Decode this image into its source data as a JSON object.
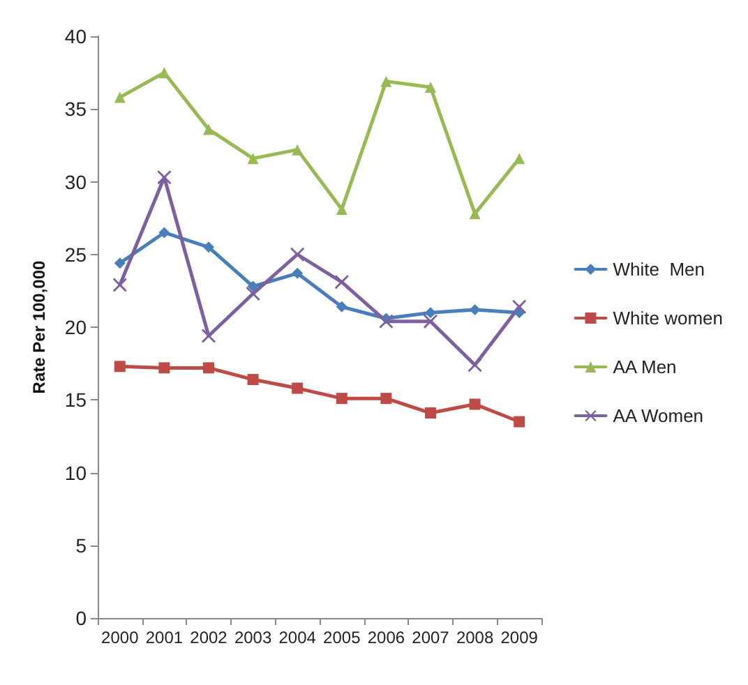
{
  "chart_data": {
    "type": "line",
    "ylabel": "Rate Per 100,000",
    "categories": [
      "2000",
      "2001",
      "2002",
      "2003",
      "2004",
      "2005",
      "2006",
      "2007",
      "2008",
      "2009"
    ],
    "series": [
      {
        "name": "White  Men",
        "color": "#4a7ebb",
        "marker": "diamond",
        "values": [
          24.4,
          26.5,
          25.5,
          22.8,
          23.7,
          21.4,
          20.6,
          21.0,
          21.2,
          21.0
        ]
      },
      {
        "name": "White women",
        "color": "#be4b48",
        "marker": "square",
        "values": [
          17.3,
          17.2,
          17.2,
          16.4,
          15.8,
          15.1,
          15.1,
          14.1,
          14.7,
          13.5
        ]
      },
      {
        "name": "AA Men",
        "color": "#98b954",
        "marker": "triangle",
        "values": [
          35.8,
          37.5,
          33.6,
          31.6,
          32.2,
          28.1,
          36.9,
          36.5,
          27.8,
          31.6
        ]
      },
      {
        "name": "AA Women",
        "color": "#7d60a0",
        "marker": "cross",
        "values": [
          22.9,
          30.3,
          19.4,
          22.3,
          25.0,
          23.1,
          20.4,
          20.4,
          17.4,
          21.4
        ]
      }
    ],
    "ylim": [
      0,
      40
    ],
    "yticks": [
      0,
      5,
      10,
      15,
      20,
      25,
      30,
      35,
      40
    ],
    "grid": false,
    "legend": "right",
    "line_style": "solid"
  }
}
